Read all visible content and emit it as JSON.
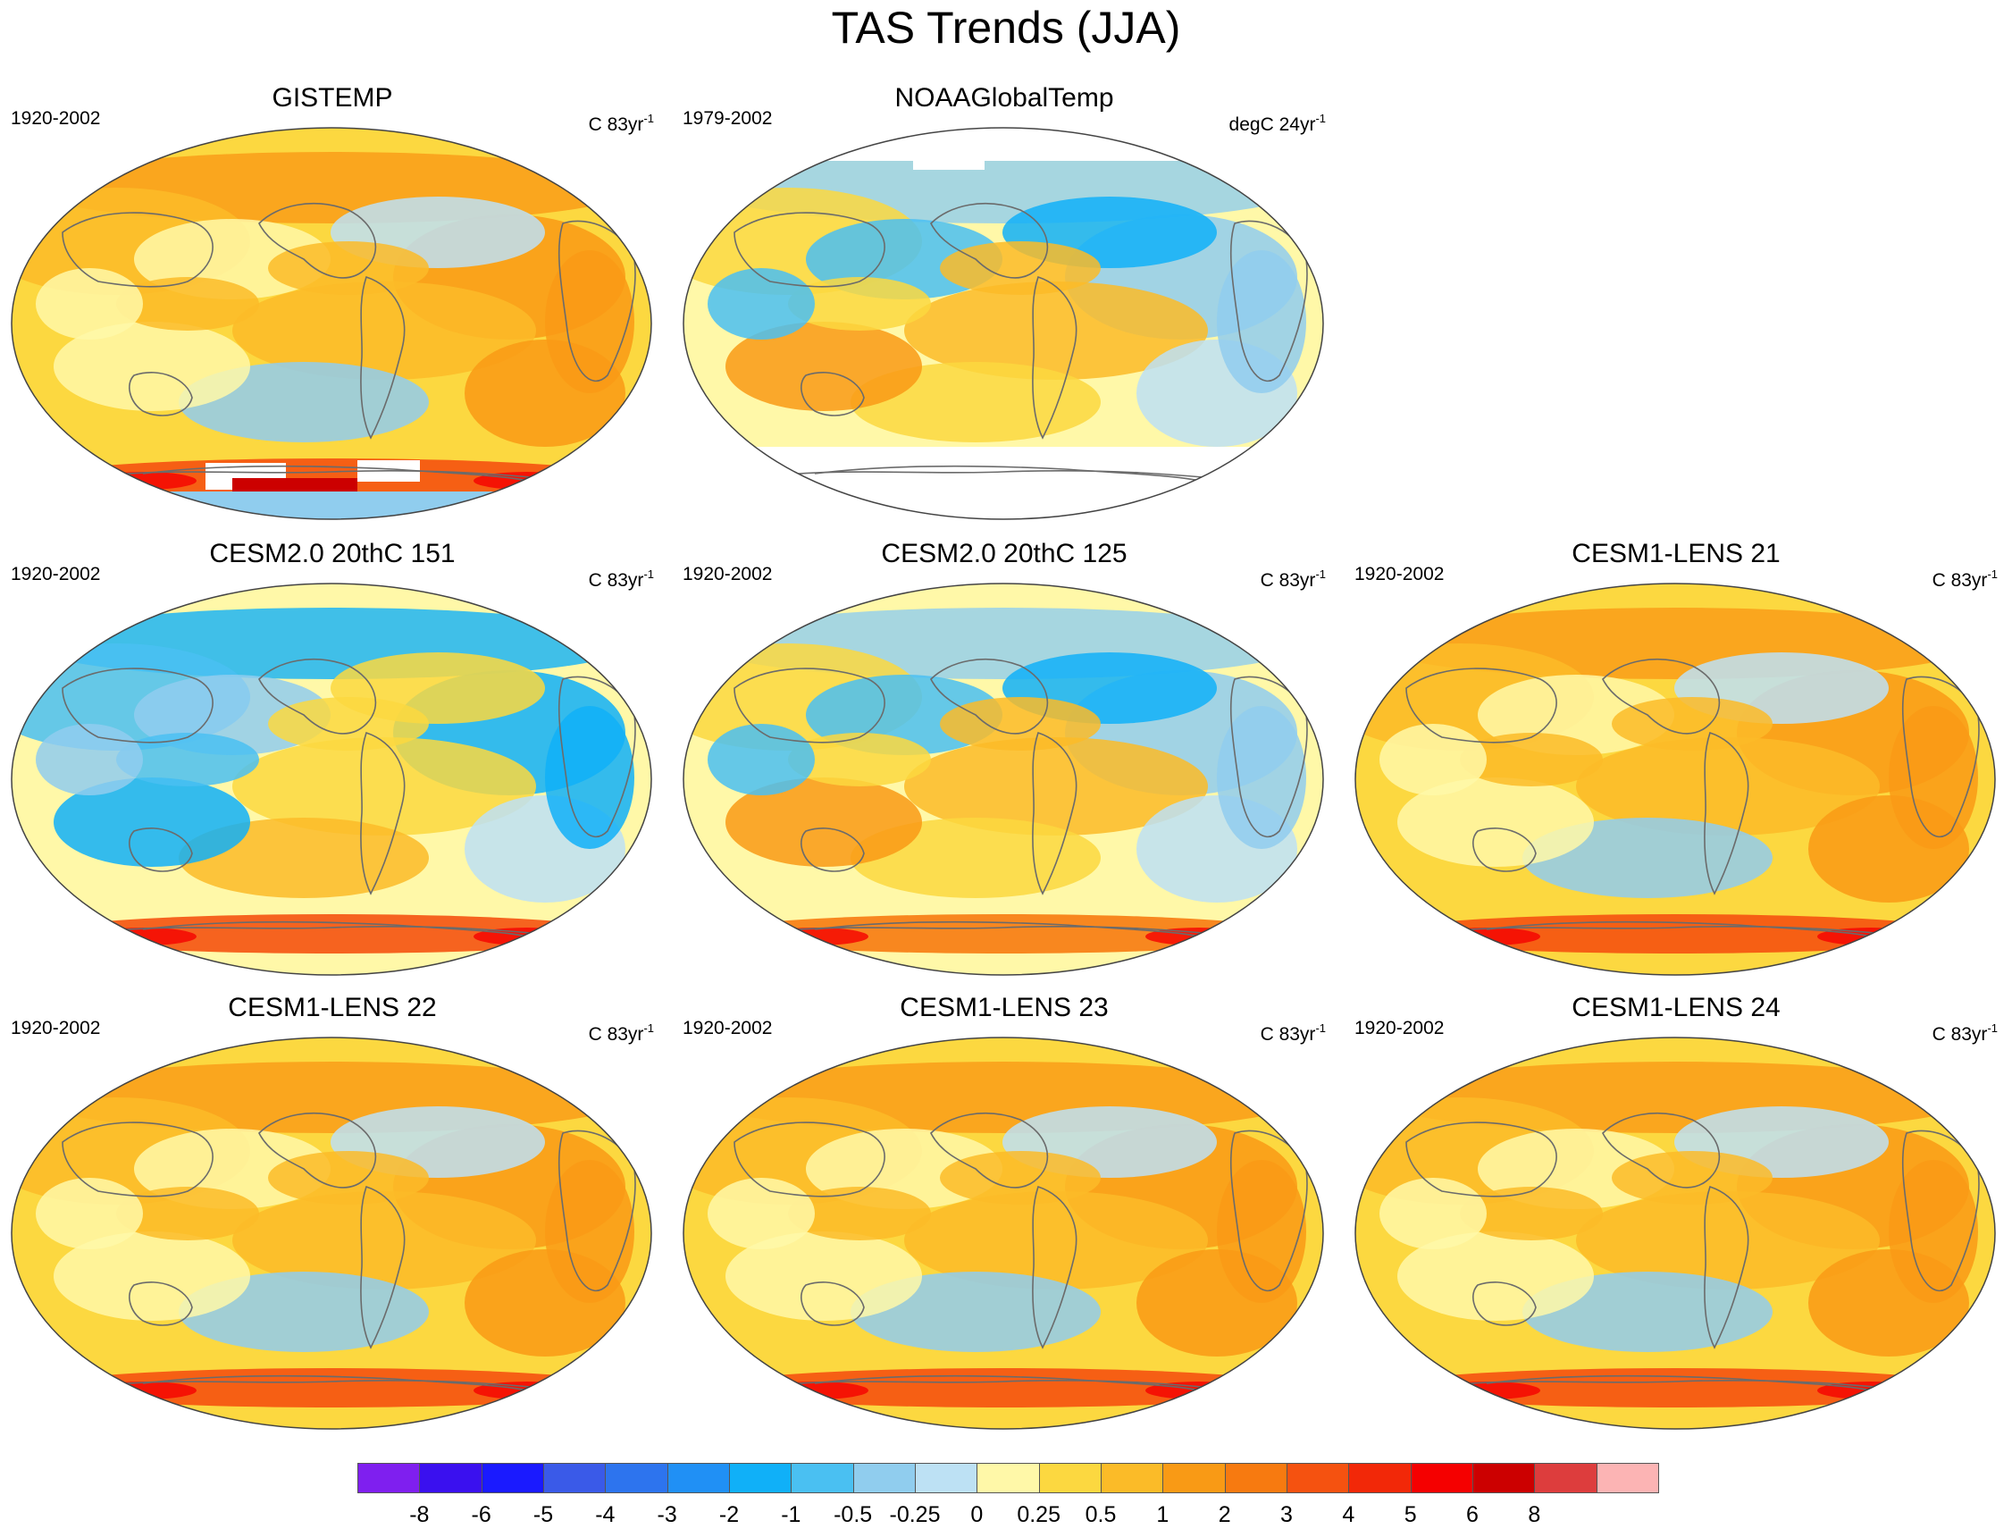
{
  "figure": {
    "title": "TAS Trends (JJA)"
  },
  "panels": [
    {
      "title": "GISTEMP",
      "period": "1920-2002",
      "unit": "C 83yr",
      "unit_sup": "-1",
      "style": "warm",
      "missing": "antarctic"
    },
    {
      "title": "NOAAGlobalTemp",
      "period": "1979-2002",
      "unit": "degC 24yr",
      "unit_sup": "-1",
      "style": "mixed",
      "missing": "poles"
    },
    {
      "title": "CESM2.0 20thC 151",
      "period": "1920-2002",
      "unit": "C 83yr",
      "unit_sup": "-1",
      "style": "cool"
    },
    {
      "title": "CESM2.0 20thC 125",
      "period": "1920-2002",
      "unit": "C 83yr",
      "unit_sup": "-1",
      "style": "mixed"
    },
    {
      "title": "CESM1-LENS 21",
      "period": "1920-2002",
      "unit": "C 83yr",
      "unit_sup": "-1",
      "style": "warm"
    },
    {
      "title": "CESM1-LENS 22",
      "period": "1920-2002",
      "unit": "C 83yr",
      "unit_sup": "-1",
      "style": "warm"
    },
    {
      "title": "CESM1-LENS 23",
      "period": "1920-2002",
      "unit": "C 83yr",
      "unit_sup": "-1",
      "style": "warm"
    },
    {
      "title": "CESM1-LENS 24",
      "period": "1920-2002",
      "unit": "C 83yr",
      "unit_sup": "-1",
      "style": "warm"
    }
  ],
  "colorbar": {
    "colors": [
      "#7f1fef",
      "#3a10ef",
      "#1a1aff",
      "#3a5ae8",
      "#2d74ee",
      "#2090f5",
      "#10b0f8",
      "#4ac0f2",
      "#90cdee",
      "#bde1f4",
      "#fff8a8",
      "#fcd840",
      "#fbbb28",
      "#f99a15",
      "#f77a10",
      "#f55210",
      "#f22808",
      "#f50000",
      "#cc0000",
      "#dd3d3d",
      "#fcb4b4"
    ],
    "labels": [
      "-8",
      "-6",
      "-5",
      "-4",
      "-3",
      "-2",
      "-1",
      "-0.5",
      "-0.25",
      "0",
      "0.25",
      "0.5",
      "1",
      "2",
      "3",
      "4",
      "5",
      "6",
      "8"
    ]
  }
}
